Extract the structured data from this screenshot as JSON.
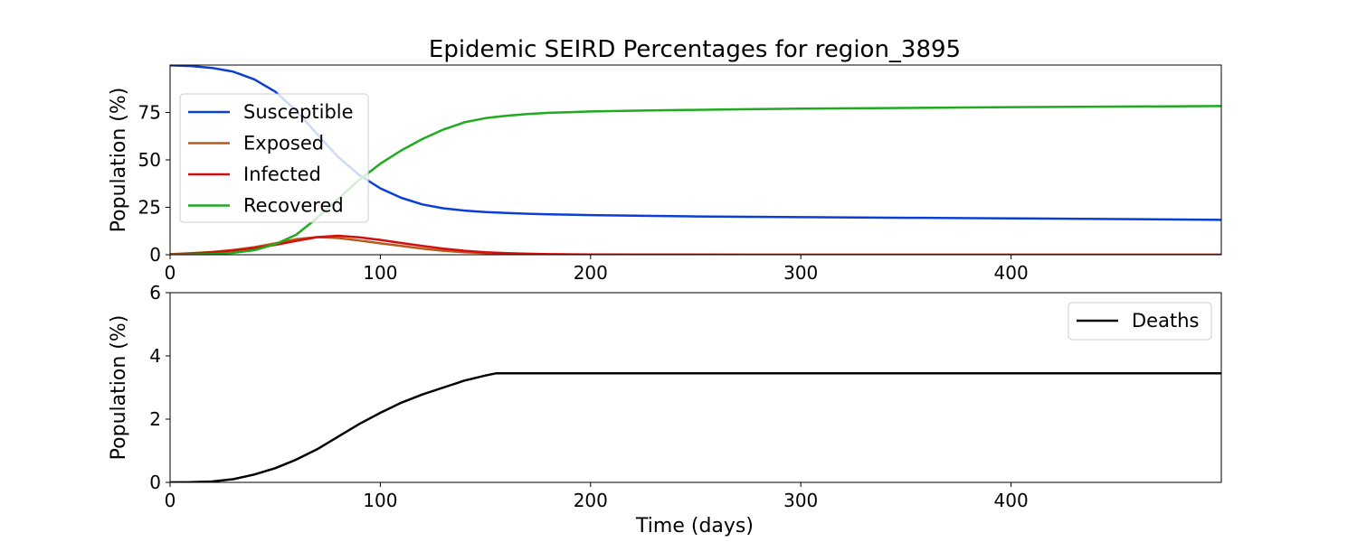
{
  "figure": {
    "title": "Epidemic SEIRD Percentages for region_3895",
    "xlabel": "Time (days)"
  },
  "colors": {
    "Susceptible": "#0a3fd6",
    "Exposed": "#b85a1e",
    "Infected": "#d40d0d",
    "Recovered": "#1faa1f",
    "Deaths": "#000000"
  },
  "chart_data": [
    {
      "type": "line",
      "title": "Epidemic SEIRD Percentages for region_3895",
      "xlabel": "",
      "ylabel": "Population (%)",
      "xlim": [
        0,
        500
      ],
      "ylim": [
        0,
        100
      ],
      "xticks": [
        0,
        100,
        200,
        300,
        400
      ],
      "yticks": [
        0,
        25,
        50,
        75
      ],
      "grid": false,
      "legend_position": "upper-left",
      "x": [
        0,
        10,
        20,
        30,
        40,
        50,
        60,
        70,
        80,
        90,
        100,
        110,
        120,
        130,
        140,
        150,
        160,
        170,
        180,
        200,
        225,
        250,
        275,
        300,
        350,
        400,
        450,
        500
      ],
      "series": [
        {
          "name": "Susceptible",
          "values": [
            99.8,
            99.5,
            98.5,
            96.5,
            92.5,
            86.0,
            76.0,
            63.5,
            51.5,
            42.0,
            35.0,
            30.0,
            26.5,
            24.5,
            23.3,
            22.5,
            22.0,
            21.6,
            21.3,
            20.9,
            20.5,
            20.2,
            20.0,
            19.8,
            19.5,
            19.2,
            18.8,
            18.4
          ]
        },
        {
          "name": "Exposed",
          "values": [
            0.3,
            0.8,
            1.5,
            2.5,
            4.0,
            6.0,
            8.2,
            9.3,
            8.8,
            7.5,
            6.0,
            4.6,
            3.2,
            2.1,
            1.3,
            0.8,
            0.5,
            0.3,
            0.2,
            0.1,
            0.05,
            0.03,
            0.02,
            0.01,
            0.0,
            0.0,
            0.0,
            0.0
          ]
        },
        {
          "name": "Infected",
          "values": [
            0.2,
            0.6,
            1.2,
            2.2,
            3.5,
            5.2,
            7.3,
            9.3,
            10.0,
            9.2,
            7.8,
            6.2,
            4.6,
            3.2,
            2.1,
            1.3,
            0.8,
            0.5,
            0.3,
            0.15,
            0.07,
            0.04,
            0.02,
            0.01,
            0.0,
            0.0,
            0.0,
            0.0
          ]
        },
        {
          "name": "Recovered",
          "values": [
            0.0,
            0.1,
            0.4,
            1.0,
            2.4,
            5.5,
            10.5,
            19.5,
            29.5,
            39.5,
            48.0,
            55.0,
            61.0,
            66.0,
            69.8,
            72.0,
            73.3,
            74.2,
            74.8,
            75.5,
            76.0,
            76.4,
            76.7,
            77.0,
            77.4,
            77.8,
            78.1,
            78.4
          ]
        }
      ]
    },
    {
      "type": "line",
      "title": "",
      "xlabel": "Time (days)",
      "ylabel": "Population (%)",
      "xlim": [
        0,
        500
      ],
      "ylim": [
        0,
        6
      ],
      "xticks": [
        0,
        100,
        200,
        300,
        400
      ],
      "yticks": [
        0,
        2,
        4,
        6
      ],
      "grid": false,
      "legend_position": "upper-right",
      "x": [
        0,
        10,
        20,
        30,
        40,
        50,
        60,
        70,
        80,
        90,
        100,
        110,
        120,
        130,
        140,
        150,
        155,
        200,
        300,
        400,
        500
      ],
      "series": [
        {
          "name": "Deaths",
          "values": [
            0.0,
            0.005,
            0.03,
            0.1,
            0.25,
            0.45,
            0.72,
            1.05,
            1.45,
            1.85,
            2.2,
            2.52,
            2.78,
            3.0,
            3.22,
            3.38,
            3.45,
            3.45,
            3.45,
            3.45,
            3.45
          ]
        }
      ]
    }
  ]
}
